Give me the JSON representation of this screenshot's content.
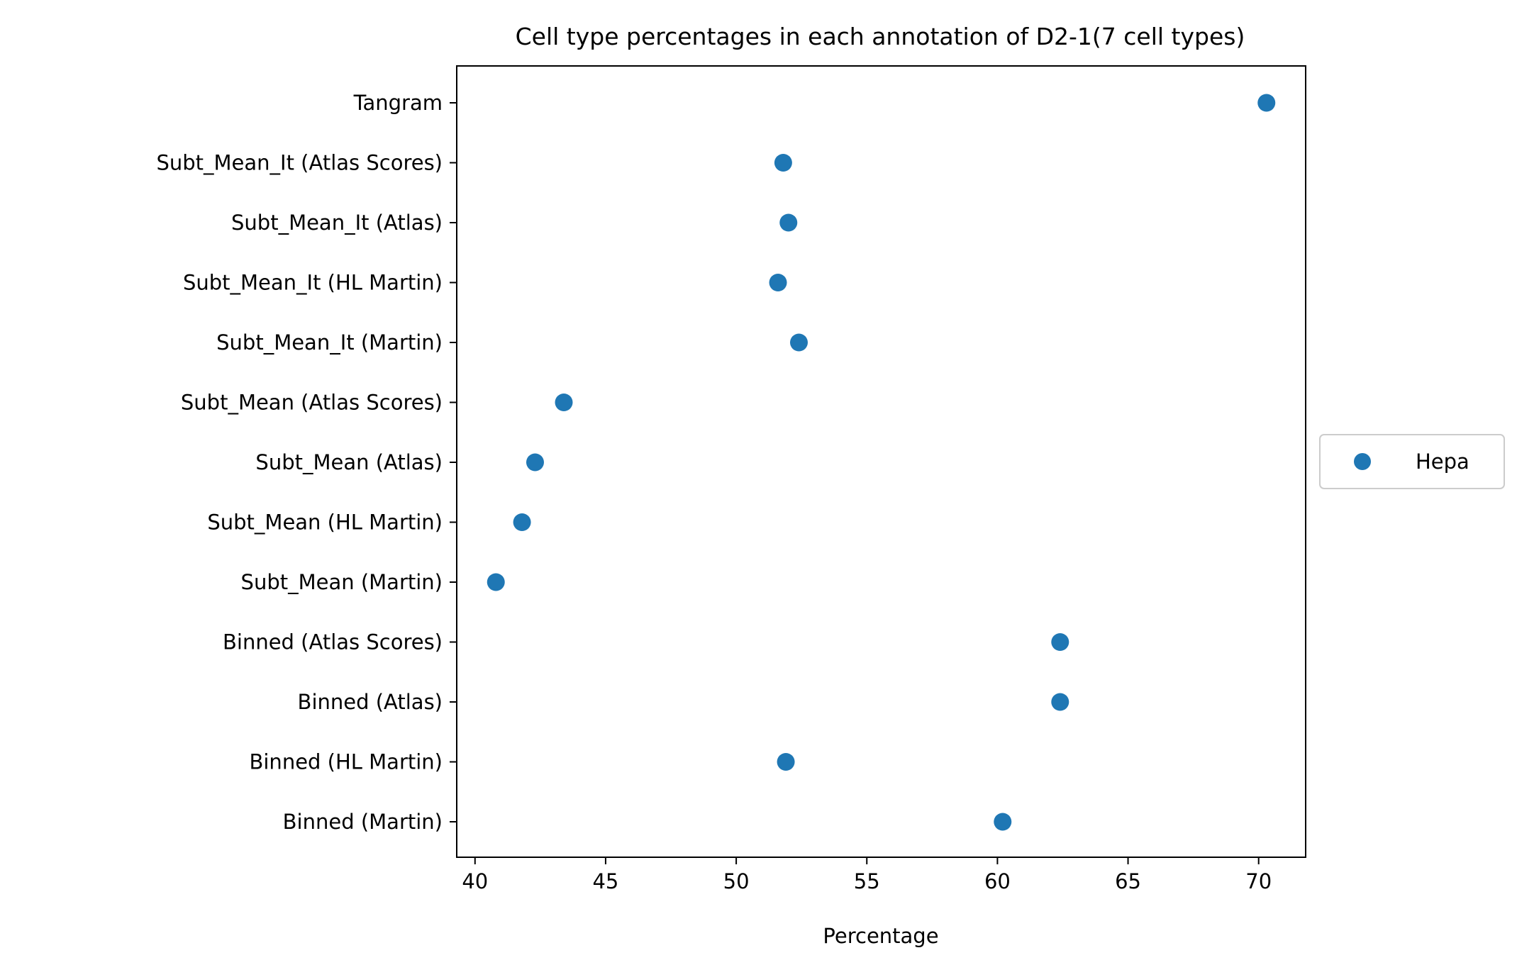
{
  "chart_data": {
    "type": "scatter",
    "title": "Cell type percentages in each annotation of D2-1(7 cell types)",
    "xlabel": "Percentage",
    "ylabel": "",
    "xlim": [
      39.3,
      71.8
    ],
    "xticks": [
      40,
      45,
      50,
      55,
      60,
      65,
      70
    ],
    "categories": [
      "Tangram",
      "Subt_Mean_It (Atlas Scores)",
      "Subt_Mean_It (Atlas)",
      "Subt_Mean_It (HL Martin)",
      "Subt_Mean_It (Martin)",
      "Subt_Mean (Atlas Scores)",
      "Subt_Mean (Atlas)",
      "Subt_Mean (HL Martin)",
      "Subt_Mean (Martin)",
      "Binned (Atlas Scores)",
      "Binned (Atlas)",
      "Binned (HL Martin)",
      "Binned (Martin)"
    ],
    "series": [
      {
        "name": "Hepa",
        "color": "#1f77b4",
        "values": [
          70.3,
          51.8,
          52.0,
          51.6,
          52.4,
          43.4,
          42.3,
          41.8,
          40.8,
          62.4,
          62.4,
          51.9,
          60.2
        ]
      }
    ],
    "legend": "right",
    "grid": false
  }
}
